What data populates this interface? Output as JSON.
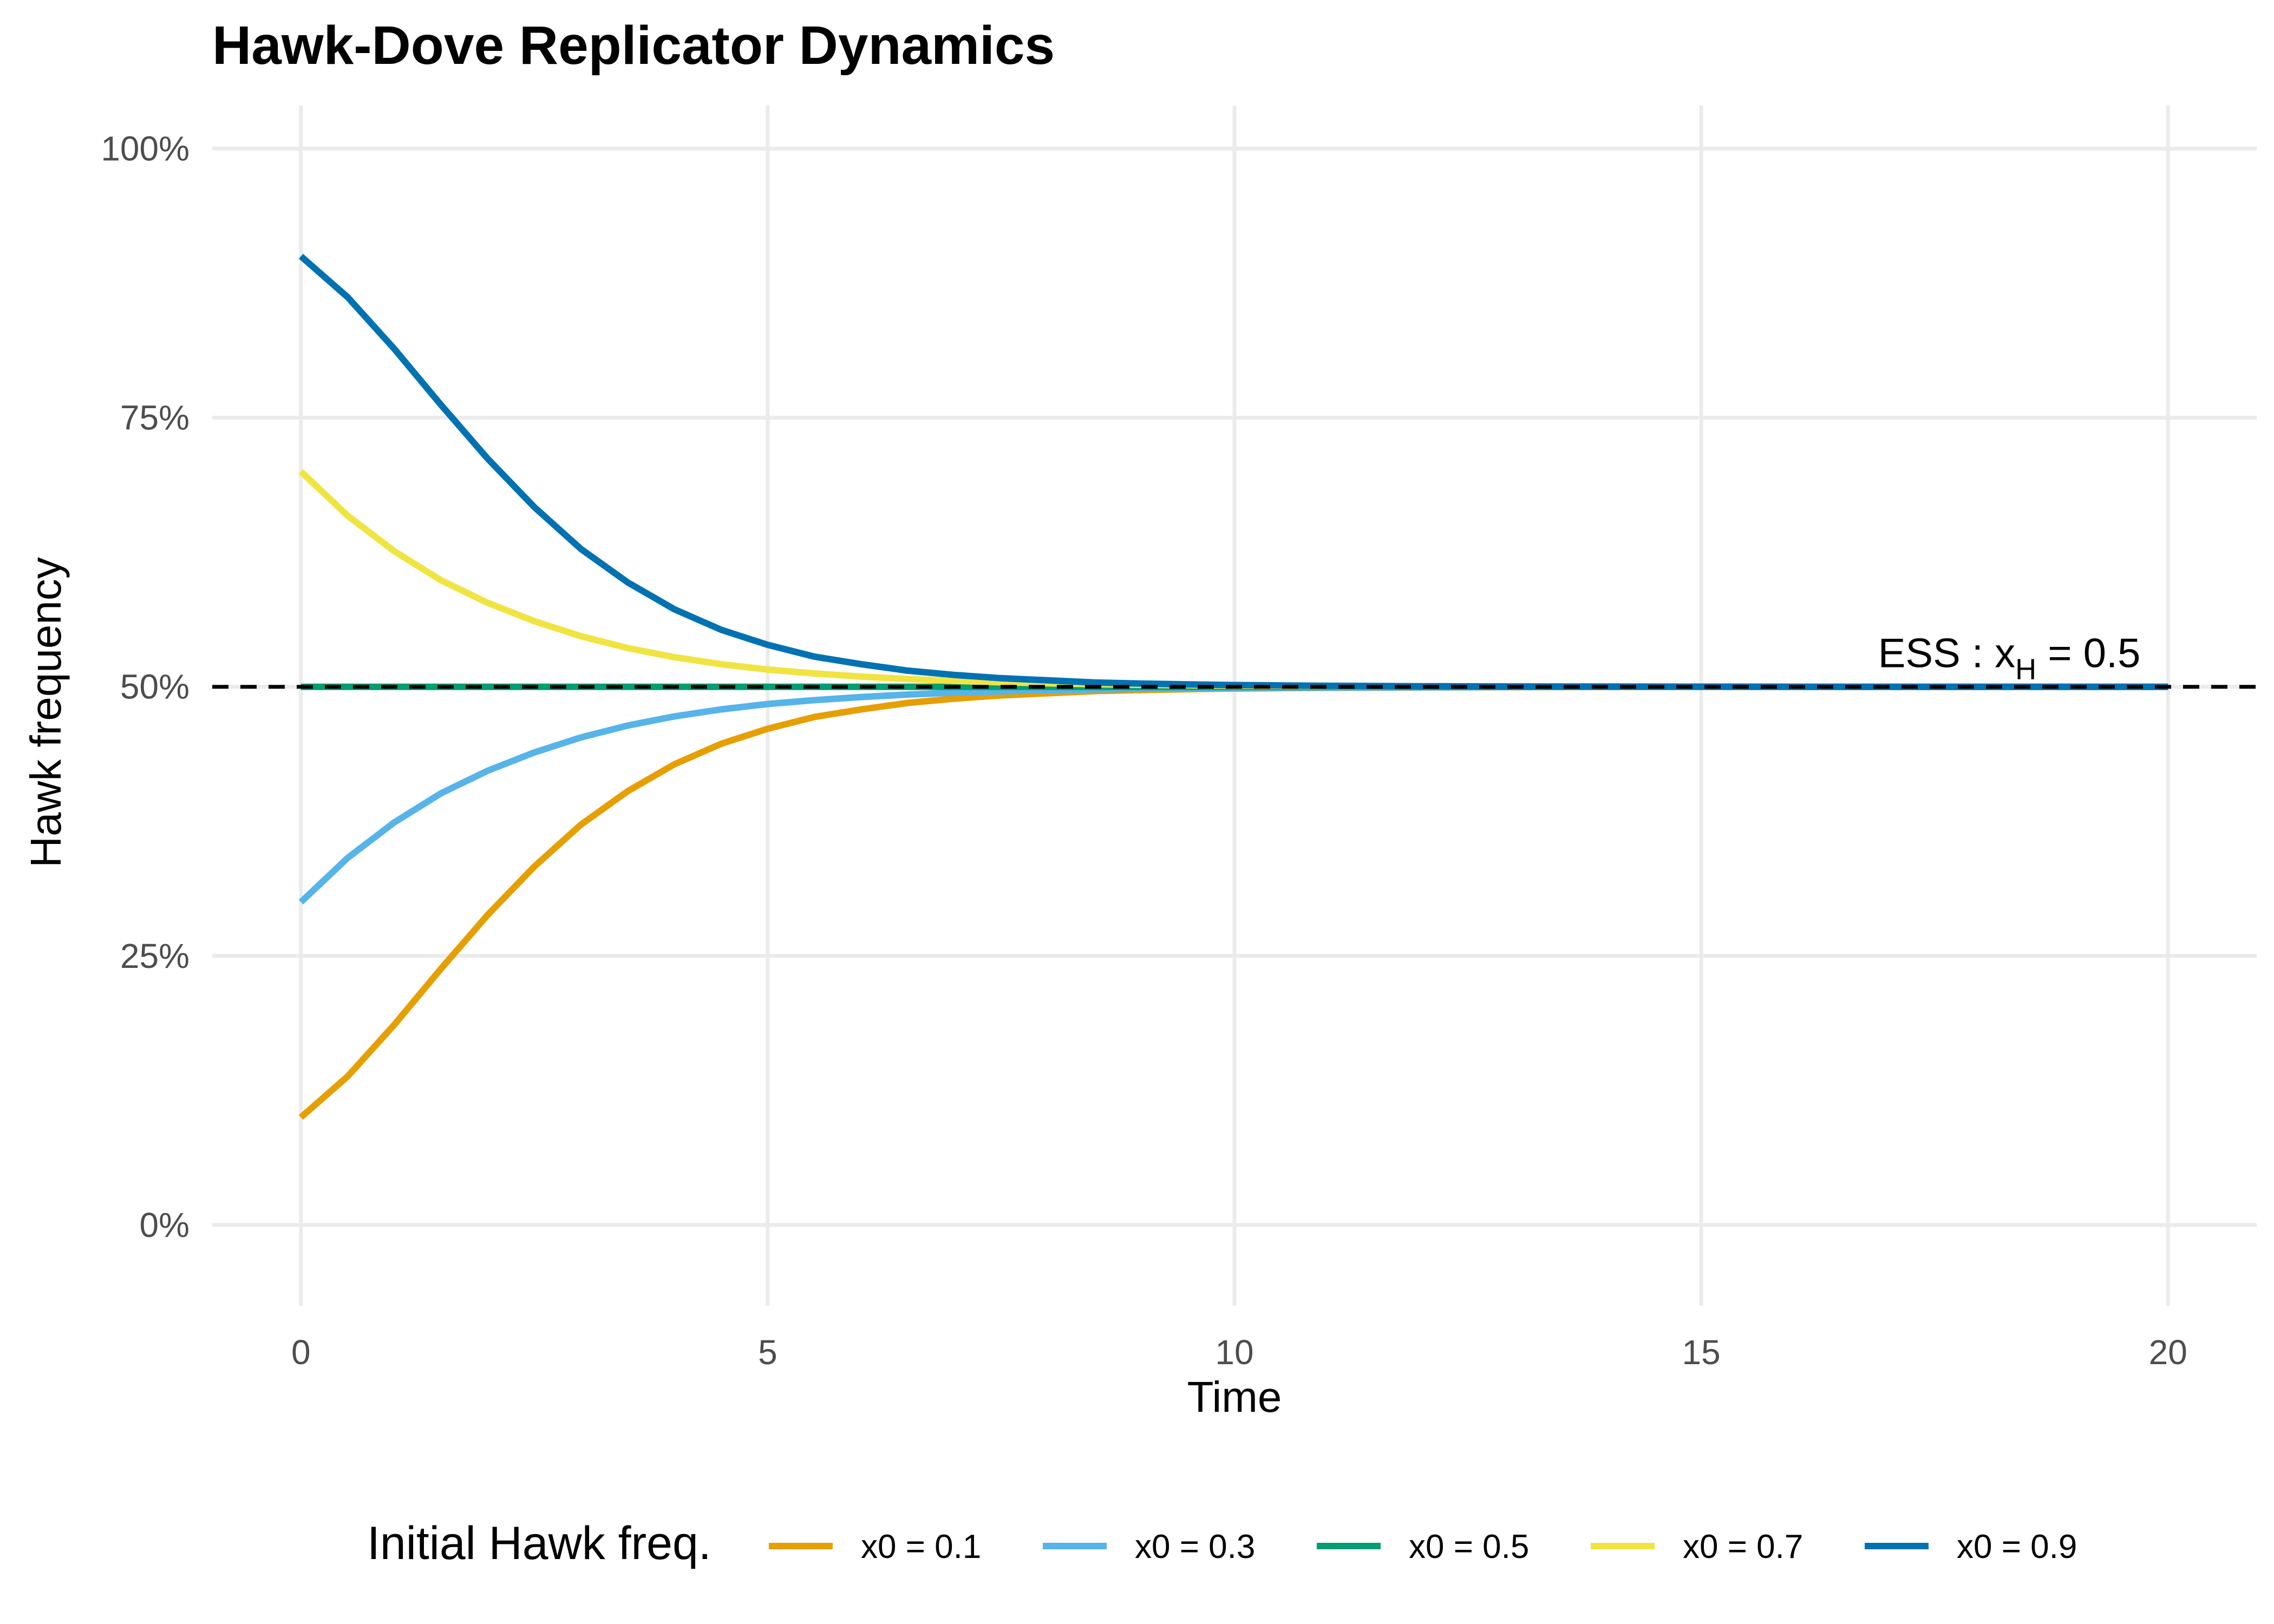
{
  "chart_data": {
    "type": "line",
    "title": "Hawk-Dove Replicator Dynamics",
    "xlabel": "Time",
    "ylabel": "Hawk frequency",
    "xlim": [
      -0.95,
      20.95
    ],
    "ylim": [
      -0.075,
      1.04
    ],
    "x_ticks": [
      0,
      5,
      10,
      15,
      20
    ],
    "x_tick_labels": [
      "0",
      "5",
      "10",
      "15",
      "20"
    ],
    "y_ticks": [
      0,
      0.25,
      0.5,
      0.75,
      1.0
    ],
    "y_tick_labels": [
      "0%",
      "25%",
      "50%",
      "75%",
      "100%"
    ],
    "grid": true,
    "legend": {
      "title": "Initial Hawk freq.",
      "position": "bottom"
    },
    "reference_line": {
      "y": 0.5,
      "style": "dashed",
      "color": "#000000"
    },
    "annotation": {
      "prefix": "ESS : x",
      "subscript": "H",
      "suffix": " = 0.5",
      "x": 18.3,
      "y": 0.5
    },
    "x": [
      0,
      0.5,
      1,
      1.5,
      2,
      2.5,
      3,
      3.5,
      4,
      4.5,
      5,
      5.5,
      6,
      6.5,
      7,
      7.5,
      8,
      8.5,
      9,
      9.5,
      10,
      11,
      12,
      13,
      14,
      15,
      16,
      17,
      18,
      19,
      20
    ],
    "series": [
      {
        "name": "x0 = 0.1",
        "color": "#E69F00",
        "values": [
          0.1,
          0.138,
          0.186,
          0.238,
          0.288,
          0.333,
          0.372,
          0.403,
          0.428,
          0.447,
          0.461,
          0.472,
          0.479,
          0.485,
          0.489,
          0.492,
          0.494,
          0.496,
          0.497,
          0.4978,
          0.4984,
          0.4991,
          0.4995,
          0.4997,
          0.4998,
          0.4999,
          0.5,
          0.5,
          0.5,
          0.5,
          0.5
        ]
      },
      {
        "name": "x0 = 0.3",
        "color": "#56B4E9",
        "values": [
          0.3,
          0.341,
          0.374,
          0.401,
          0.422,
          0.439,
          0.453,
          0.464,
          0.4725,
          0.479,
          0.484,
          0.4876,
          0.4905,
          0.4928,
          0.4945,
          0.4958,
          0.4968,
          0.4976,
          0.4982,
          0.4986,
          0.499,
          0.4994,
          0.4996,
          0.4998,
          0.4999,
          0.5,
          0.5,
          0.5,
          0.5,
          0.5,
          0.5
        ]
      },
      {
        "name": "x0 = 0.5",
        "color": "#009E73",
        "values": [
          0.5,
          0.5,
          0.5,
          0.5,
          0.5,
          0.5,
          0.5,
          0.5,
          0.5,
          0.5,
          0.5,
          0.5,
          0.5,
          0.5,
          0.5,
          0.5,
          0.5,
          0.5,
          0.5,
          0.5,
          0.5,
          0.5,
          0.5,
          0.5,
          0.5,
          0.5,
          0.5,
          0.5,
          0.5,
          0.5,
          0.5
        ]
      },
      {
        "name": "x0 = 0.7",
        "color": "#F0E442",
        "values": [
          0.7,
          0.659,
          0.626,
          0.599,
          0.578,
          0.561,
          0.547,
          0.536,
          0.5275,
          0.521,
          0.516,
          0.5124,
          0.5095,
          0.5072,
          0.5055,
          0.5042,
          0.5032,
          0.5024,
          0.5018,
          0.5014,
          0.501,
          0.5006,
          0.5004,
          0.5002,
          0.5001,
          0.5,
          0.5,
          0.5,
          0.5,
          0.5,
          0.5
        ]
      },
      {
        "name": "x0 = 0.9",
        "color": "#0072B2",
        "values": [
          0.9,
          0.862,
          0.814,
          0.762,
          0.712,
          0.667,
          0.628,
          0.597,
          0.572,
          0.553,
          0.539,
          0.528,
          0.521,
          0.515,
          0.511,
          0.508,
          0.506,
          0.504,
          0.503,
          0.5022,
          0.5016,
          0.5009,
          0.5005,
          0.5003,
          0.5002,
          0.5001,
          0.5,
          0.5,
          0.5,
          0.5,
          0.5
        ]
      }
    ]
  }
}
